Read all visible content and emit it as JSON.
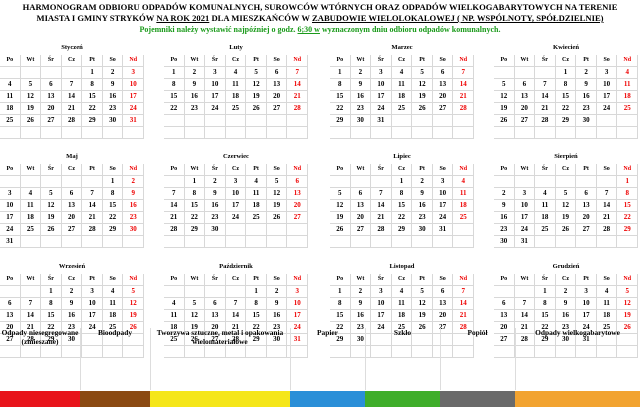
{
  "header": {
    "line1": "HARMONOGRAM ODBIORU ODPADÓW KOMUNALNYCH, SUROWCÓW WTÓRNYCH ORAZ ODPADÓW WIELKOGABARYTOWYCH NA TERENIE",
    "line2a": "MIASTA I GMINY STRYKÓW ",
    "line2b": "NA ROK 2021",
    "line2c": " DLA MIESZKAŃCÓW W ",
    "line2d": "ZABUDOWIE WIELOLOKALOWEJ ( NP. WSPÓLNOTY, SPÓŁDZIELNIE)",
    "line3a": "Pojemniki należy wystawić najpóźniej o godz. ",
    "line3b": "6;30 w",
    "line3c": " wyznaczonym dniu odbioru odpadów komunalnych."
  },
  "weekdays": [
    "Po",
    "Wt",
    "Śr",
    "Cz",
    "Pt",
    "So",
    "Nd"
  ],
  "months": [
    {
      "name": "Styczeń",
      "days": [
        "",
        "",
        "",
        "",
        "1",
        "2",
        "3",
        "4",
        "5",
        "6",
        "7",
        "8",
        "9",
        "10",
        "11",
        "12",
        "13",
        "14",
        "15",
        "16",
        "17",
        "18",
        "19",
        "20",
        "21",
        "22",
        "23",
        "24",
        "25",
        "26",
        "27",
        "28",
        "29",
        "30",
        "31"
      ]
    },
    {
      "name": "Luty",
      "days": [
        "1",
        "2",
        "3",
        "4",
        "5",
        "6",
        "7",
        "8",
        "9",
        "10",
        "11",
        "12",
        "13",
        "14",
        "15",
        "16",
        "17",
        "18",
        "19",
        "20",
        "21",
        "22",
        "23",
        "24",
        "25",
        "26",
        "27",
        "28"
      ]
    },
    {
      "name": "Marzec",
      "days": [
        "1",
        "2",
        "3",
        "4",
        "5",
        "6",
        "7",
        "8",
        "9",
        "10",
        "11",
        "12",
        "13",
        "14",
        "15",
        "16",
        "17",
        "18",
        "19",
        "20",
        "21",
        "22",
        "23",
        "24",
        "25",
        "26",
        "27",
        "28",
        "29",
        "30",
        "31"
      ]
    },
    {
      "name": "Kwiecień",
      "days": [
        "",
        "",
        "",
        "1",
        "2",
        "3",
        "4",
        "5",
        "6",
        "7",
        "8",
        "9",
        "10",
        "11",
        "12",
        "13",
        "14",
        "15",
        "16",
        "17",
        "18",
        "19",
        "20",
        "21",
        "22",
        "23",
        "24",
        "25",
        "26",
        "27",
        "28",
        "29",
        "30"
      ]
    },
    {
      "name": "Maj",
      "days": [
        "",
        "",
        "",
        "",
        "",
        "1",
        "2",
        "3",
        "4",
        "5",
        "6",
        "7",
        "8",
        "9",
        "10",
        "11",
        "12",
        "13",
        "14",
        "15",
        "16",
        "17",
        "18",
        "19",
        "20",
        "21",
        "22",
        "23",
        "24",
        "25",
        "26",
        "27",
        "28",
        "29",
        "30",
        "31"
      ]
    },
    {
      "name": "Czerwiec",
      "days": [
        "",
        "1",
        "2",
        "3",
        "4",
        "5",
        "6",
        "7",
        "8",
        "9",
        "10",
        "11",
        "12",
        "13",
        "14",
        "15",
        "16",
        "17",
        "18",
        "19",
        "20",
        "21",
        "22",
        "23",
        "24",
        "25",
        "26",
        "27",
        "28",
        "29",
        "30"
      ]
    },
    {
      "name": "Lipiec",
      "days": [
        "",
        "",
        "",
        "1",
        "2",
        "3",
        "4",
        "5",
        "6",
        "7",
        "8",
        "9",
        "10",
        "11",
        "12",
        "13",
        "14",
        "15",
        "16",
        "17",
        "18",
        "19",
        "20",
        "21",
        "22",
        "23",
        "24",
        "25",
        "26",
        "27",
        "28",
        "29",
        "30",
        "31"
      ]
    },
    {
      "name": "Sierpień",
      "days": [
        "",
        "",
        "",
        "",
        "",
        "",
        "1",
        "2",
        "3",
        "4",
        "5",
        "6",
        "7",
        "8",
        "9",
        "10",
        "11",
        "12",
        "13",
        "14",
        "15",
        "16",
        "17",
        "18",
        "19",
        "20",
        "21",
        "22",
        "23",
        "24",
        "25",
        "26",
        "27",
        "28",
        "29",
        "30",
        "31"
      ]
    },
    {
      "name": "Wrzesień",
      "days": [
        "",
        "",
        "1",
        "2",
        "3",
        "4",
        "5",
        "6",
        "7",
        "8",
        "9",
        "10",
        "11",
        "12",
        "13",
        "14",
        "15",
        "16",
        "17",
        "18",
        "19",
        "20",
        "21",
        "22",
        "23",
        "24",
        "25",
        "26",
        "27",
        "28",
        "29",
        "30"
      ]
    },
    {
      "name": "Październik",
      "days": [
        "",
        "",
        "",
        "",
        "1",
        "2",
        "3",
        "4",
        "5",
        "6",
        "7",
        "8",
        "9",
        "10",
        "11",
        "12",
        "13",
        "14",
        "15",
        "16",
        "17",
        "18",
        "19",
        "20",
        "21",
        "22",
        "23",
        "24",
        "25",
        "26",
        "27",
        "28",
        "29",
        "30",
        "31"
      ]
    },
    {
      "name": "Listopad",
      "days": [
        "1",
        "2",
        "3",
        "4",
        "5",
        "6",
        "7",
        "8",
        "9",
        "10",
        "11",
        "12",
        "13",
        "14",
        "15",
        "16",
        "17",
        "18",
        "19",
        "20",
        "21",
        "22",
        "23",
        "24",
        "25",
        "26",
        "27",
        "28",
        "29",
        "30"
      ]
    },
    {
      "name": "Grudzień",
      "days": [
        "",
        "",
        "1",
        "2",
        "3",
        "4",
        "5",
        "6",
        "7",
        "8",
        "9",
        "10",
        "11",
        "12",
        "13",
        "14",
        "15",
        "16",
        "17",
        "18",
        "19",
        "20",
        "21",
        "22",
        "23",
        "24",
        "25",
        "26",
        "27",
        "28",
        "29",
        "30",
        "31"
      ]
    }
  ],
  "legend": [
    {
      "label": "Odpady niesegregowane (zmieszane)",
      "color": "#e8141b"
    },
    {
      "label": "Bioodpady",
      "color": "#8b4a12"
    },
    {
      "label": "Tworzywa sztuczne, metal i opakowania wielomateriałowe",
      "color": "#f5e61a"
    },
    {
      "label": "Papier",
      "color": "#2a8fd8"
    },
    {
      "label": "Szkło",
      "color": "#3fae2a"
    },
    {
      "label": "Popiół",
      "color": "#6a6a6a"
    },
    {
      "label": "Odpady wielkogabarytowe",
      "color": "#f2a330"
    }
  ]
}
